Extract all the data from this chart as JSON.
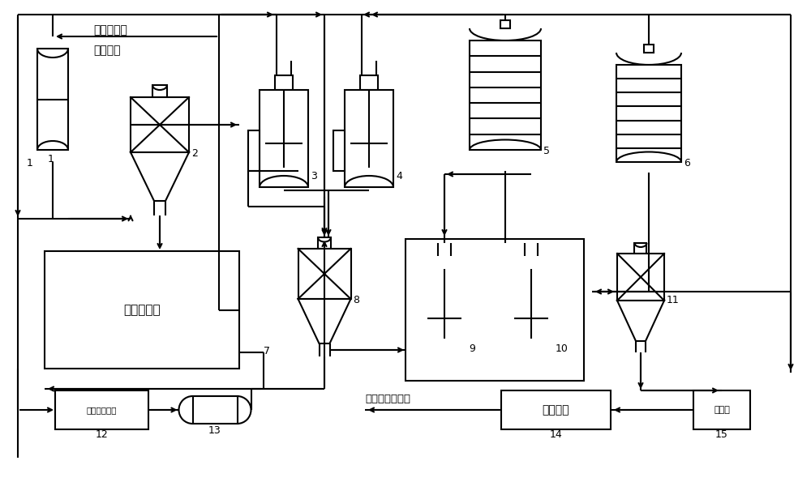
{
  "bg": "#ffffff",
  "lc": "#000000",
  "lw": 1.5,
  "thin": 0.8,
  "labels": {
    "title1": "超临界水热",
    "title2": "合成产物",
    "vacuum": "真空手套笱",
    "box12": "变压吸附装置",
    "box14": "干燥装置",
    "box15": "冷凝器",
    "nano": "纳米铜粉体产品"
  }
}
